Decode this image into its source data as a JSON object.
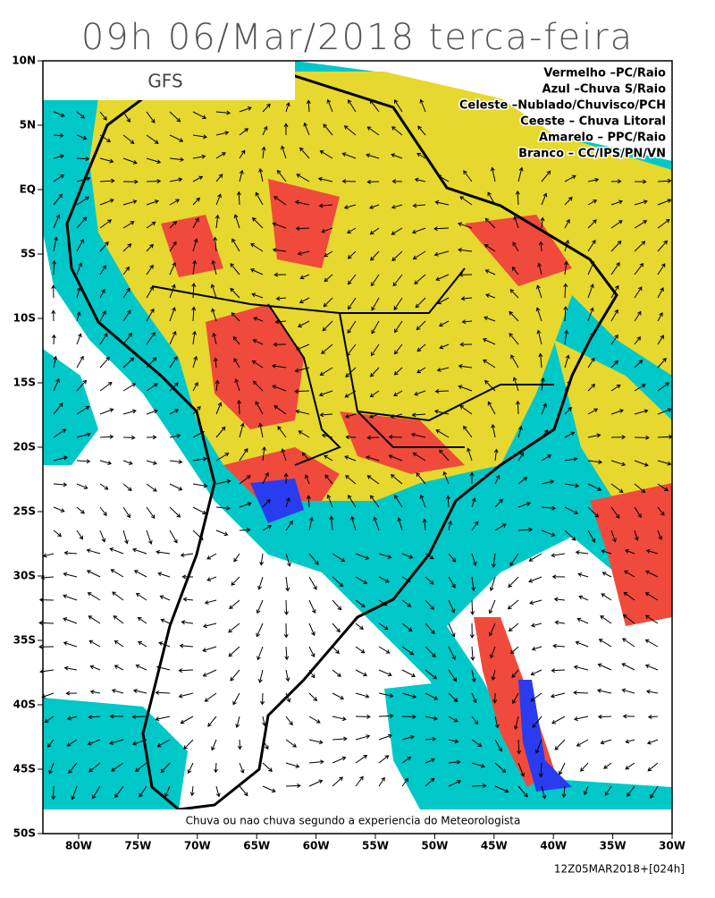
{
  "title": "09h 06/Mar/2018 terca-feira",
  "model": "GFS",
  "legend": [
    "Vermelho –PC/Raio",
    "Azul –Chuva S/Raio",
    "Celeste –Nublado/Chuvisco/PCH",
    "Ceeste – Chuva Litoral",
    "Amarelo – PPC/Raio",
    "Branco – CC/IPS/PN/VN"
  ],
  "lat_labels": [
    "10N",
    "5N",
    "EQ",
    "5S",
    "10S",
    "15S",
    "20S",
    "25S",
    "30S",
    "35S",
    "40S",
    "45S",
    "50S"
  ],
  "lon_labels": [
    "80W",
    "75W",
    "70W",
    "65W",
    "60W",
    "55W",
    "50W",
    "45W",
    "40W",
    "35W",
    "30W"
  ],
  "footer": "Chuva ou nao chuva segundo a experiencia do Meteorologista",
  "run": "12Z05MAR2018+[024h]"
}
